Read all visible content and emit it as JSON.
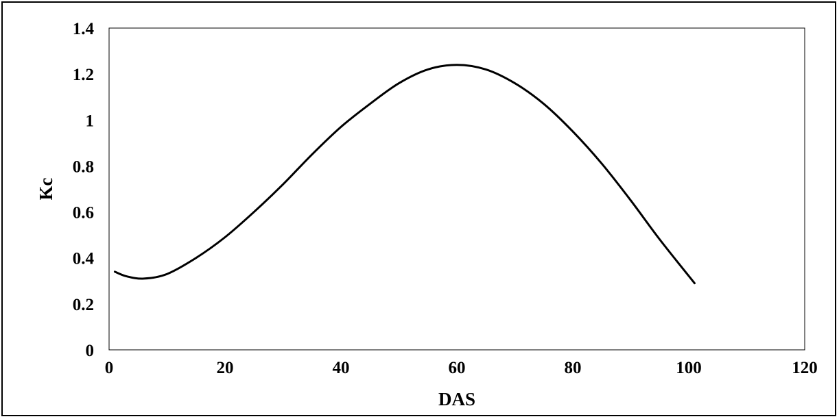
{
  "chart_data": {
    "type": "line",
    "title": "",
    "xlabel": "DAS",
    "ylabel": "Kc",
    "xlim": [
      0,
      120
    ],
    "ylim": [
      0,
      1.4
    ],
    "x_ticks": [
      "0",
      "20",
      "40",
      "60",
      "80",
      "100",
      "120"
    ],
    "y_ticks": [
      "0",
      "0.2",
      "0.4",
      "0.6",
      "0.8",
      "1",
      "1.2",
      "1.4"
    ],
    "grid": false,
    "legend": "none",
    "line_color": "#000000",
    "series": [
      {
        "x": [
          1,
          3,
          6,
          10,
          15,
          20,
          25,
          30,
          35,
          40,
          45,
          50,
          55,
          60,
          65,
          70,
          75,
          80,
          85,
          90,
          95,
          101
        ],
        "y": [
          0.34,
          0.32,
          0.31,
          0.33,
          0.4,
          0.49,
          0.6,
          0.72,
          0.85,
          0.97,
          1.07,
          1.16,
          1.22,
          1.24,
          1.22,
          1.16,
          1.07,
          0.95,
          0.81,
          0.65,
          0.48,
          0.29
        ]
      }
    ]
  }
}
